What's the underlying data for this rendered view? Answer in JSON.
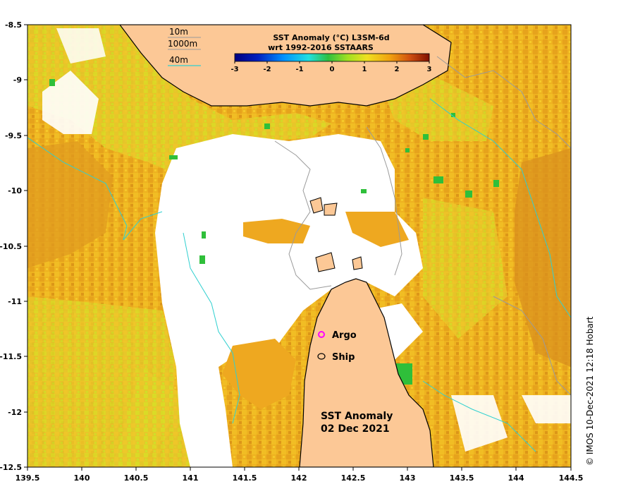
{
  "map": {
    "title_line1": "SST Anomaly (°C) L3SM-6d",
    "title_line2": "wrt 1992-2016 SSTAARS",
    "overlay_title": "SST Anomaly",
    "overlay_date": "02 Dec 2021",
    "credit": "© IMOS 10-Dec-2021 12:18 Hobart",
    "depth_contours": [
      "10m",
      "1000m",
      "40m"
    ],
    "legend": {
      "argo": "Argo",
      "ship": "Ship",
      "argo_color": "#ff00ff",
      "ship_color": "#000000"
    },
    "colorbar": {
      "ticks": [
        "-3",
        "-2",
        "-1",
        "0",
        "1",
        "2",
        "3"
      ],
      "range": [
        -3,
        3
      ]
    },
    "x_axis": {
      "ticks": [
        "139.5",
        "140",
        "140.5",
        "141",
        "141.5",
        "142",
        "142.5",
        "143",
        "143.5",
        "144",
        "144.5"
      ]
    },
    "y_axis": {
      "ticks": [
        "-8.5",
        "-9",
        "-9.5",
        "-10",
        "-10.5",
        "-11",
        "-11.5",
        "-12",
        "-12.5"
      ]
    },
    "colors": {
      "land": "#fcc896",
      "no_data": "#ffffff",
      "anomaly_high": "#e39a1d",
      "anomaly_mid": "#f2b81d",
      "anomaly_low": "#d9e021",
      "anomaly_zero": "#2fbf3a",
      "contour_10m": "#9a9a9a",
      "contour_40m": "#30d0d0"
    }
  }
}
